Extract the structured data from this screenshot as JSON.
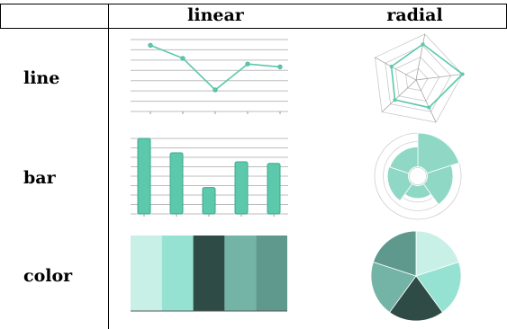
{
  "header": {
    "linear": "linear",
    "radial": "radial"
  },
  "rows": [
    {
      "label": "line"
    },
    {
      "label": "bar"
    },
    {
      "label": "color"
    }
  ],
  "colors": {
    "teal": "#5cc8ac",
    "teal_dark_stroke": "#3aaa8e",
    "palette": [
      "#c8f0e6",
      "#96e2d2",
      "#2f4b45",
      "#74b4a6",
      "#5f998d"
    ]
  },
  "chart_data": [
    {
      "type": "line",
      "coord": "linear",
      "values": [
        92,
        74,
        30,
        66,
        62
      ]
    },
    {
      "type": "line",
      "coord": "radial",
      "values": [
        78,
        100,
        65,
        62,
        60
      ]
    },
    {
      "type": "bar",
      "coord": "linear",
      "values": [
        100,
        81,
        35,
        69,
        67
      ]
    },
    {
      "type": "bar",
      "coord": "radial",
      "values": [
        100,
        76,
        38,
        62,
        59
      ]
    },
    {
      "type": "color",
      "coord": "linear",
      "values": [
        1,
        2,
        3,
        4,
        5
      ]
    },
    {
      "type": "color",
      "coord": "radial",
      "values": [
        1,
        2,
        3,
        4,
        5
      ]
    }
  ]
}
